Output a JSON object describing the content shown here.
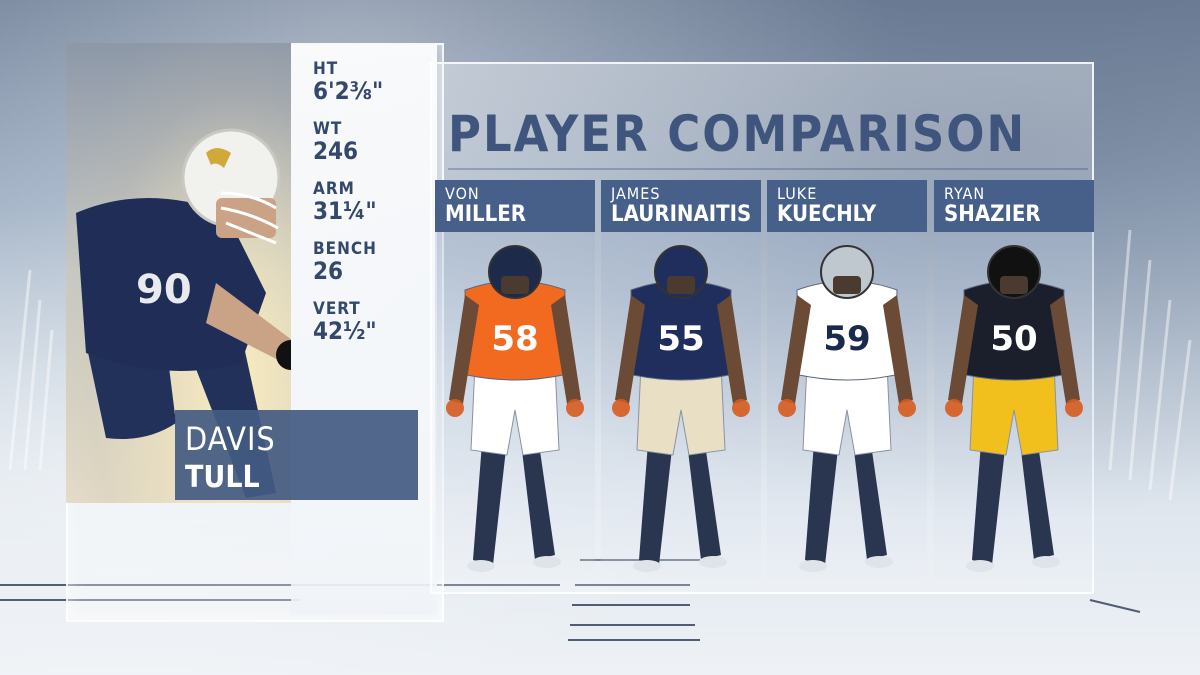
{
  "left_player": {
    "first_name": "DAVIS",
    "last_name": "TULL",
    "jersey_number": "90",
    "stats": [
      {
        "label": "HT",
        "value": "6'2⅜\""
      },
      {
        "label": "WT",
        "value": "246"
      },
      {
        "label": "ARM",
        "value": "31¼\""
      },
      {
        "label": "BENCH",
        "value": "26"
      },
      {
        "label": "VERT",
        "value": "42½\""
      }
    ]
  },
  "comparison": {
    "title": "PLAYER COMPARISON",
    "players": [
      {
        "first": "VON",
        "last": "MILLER",
        "number": "58",
        "jersey_color": "#f26a1f",
        "pants_color": "#ffffff",
        "helmet_color": "#1e2a4a"
      },
      {
        "first": "JAMES",
        "last": "LAURINAITIS",
        "number": "55",
        "jersey_color": "#1f2e5c",
        "pants_color": "#e9dfc4",
        "helmet_color": "#1f2e5c"
      },
      {
        "first": "LUKE",
        "last": "KUECHLY",
        "number": "59",
        "jersey_color": "#ffffff",
        "pants_color": "#ffffff",
        "helmet_color": "#bfc7cf"
      },
      {
        "first": "RYAN",
        "last": "SHAZIER",
        "number": "50",
        "jersey_color": "#1b1f2b",
        "pants_color": "#f2c01d",
        "helmet_color": "#111111"
      }
    ]
  },
  "colors": {
    "accent": "#46608a",
    "title": "#3f557d"
  }
}
